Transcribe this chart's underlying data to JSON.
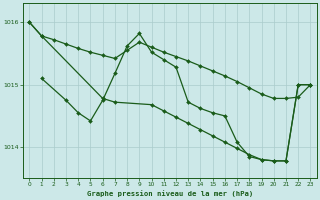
{
  "title": "Graphe pression niveau de la mer (hPa)",
  "background_color": "#cce8e8",
  "line_color": "#1a5c1a",
  "grid_color": "#aacccc",
  "xlim": [
    -0.5,
    23.5
  ],
  "ylim": [
    1013.5,
    1016.3
  ],
  "yticks": [
    1014,
    1015,
    1016
  ],
  "xticks": [
    0,
    1,
    2,
    3,
    4,
    5,
    6,
    7,
    8,
    9,
    10,
    11,
    12,
    13,
    14,
    15,
    16,
    17,
    18,
    19,
    20,
    21,
    22,
    23
  ],
  "series1_x": [
    0,
    1,
    2,
    3,
    4,
    5,
    6,
    7,
    8,
    9,
    10,
    11,
    12,
    13,
    14,
    15,
    16,
    17,
    18,
    19,
    20,
    21,
    22,
    23
  ],
  "series1_y": [
    1016.0,
    1015.78,
    1015.72,
    1015.65,
    1015.58,
    1015.52,
    1015.47,
    1015.42,
    1015.55,
    1015.68,
    1015.6,
    1015.52,
    1015.45,
    1015.38,
    1015.3,
    1015.22,
    1015.14,
    1015.05,
    1014.95,
    1014.85,
    1014.78,
    1014.78,
    1014.8,
    1015.0
  ],
  "series2_x": [
    1,
    3,
    4,
    5,
    6,
    7,
    8,
    9,
    10,
    11,
    12,
    13,
    14,
    15,
    16,
    17,
    18,
    19,
    20,
    21,
    22,
    23
  ],
  "series2_y": [
    1015.1,
    1014.75,
    1014.55,
    1014.42,
    1014.75,
    1015.18,
    1015.62,
    1015.82,
    1015.52,
    1015.4,
    1015.28,
    1014.72,
    1014.62,
    1014.55,
    1014.5,
    1014.08,
    1013.85,
    1013.8,
    1013.78,
    1013.78,
    1015.0,
    1015.0
  ],
  "series3_x": [
    0,
    1,
    6,
    7,
    10,
    11,
    12,
    13,
    14,
    15,
    16,
    17,
    18,
    19,
    20,
    21,
    22,
    23
  ],
  "series3_y": [
    1016.0,
    1015.78,
    1014.78,
    1014.72,
    1014.68,
    1014.58,
    1014.48,
    1014.38,
    1014.28,
    1014.18,
    1014.08,
    1013.98,
    1013.88,
    1013.8,
    1013.78,
    1013.78,
    1015.0,
    1015.0
  ]
}
